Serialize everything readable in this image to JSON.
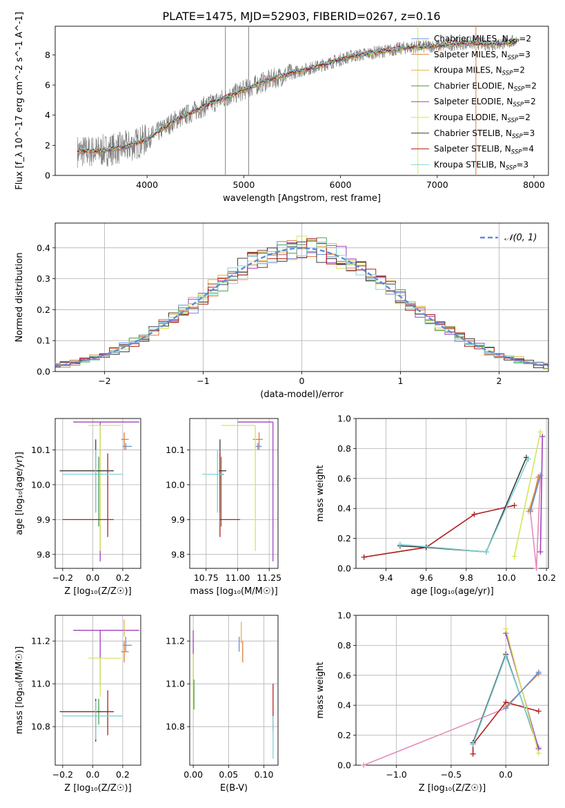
{
  "figure": {
    "title": "PLATE=1475, MJD=52903, FIBERID=0267, z=0.16"
  },
  "models": [
    {
      "name": "Chabrier MILES",
      "nssp": "2",
      "color": "#6b8fd6"
    },
    {
      "name": "Salpeter MILES",
      "nssp": "3",
      "color": "#e07b39"
    },
    {
      "name": "Kroupa MILES",
      "nssp": "2",
      "color": "#e3b34a"
    },
    {
      "name": "Chabrier ELODIE",
      "nssp": "2",
      "color": "#4e9a4e"
    },
    {
      "name": "Salpeter ELODIE",
      "nssp": "2",
      "color": "#a23fbf"
    },
    {
      "name": "Kroupa ELODIE",
      "nssp": "2",
      "color": "#d2e65a"
    },
    {
      "name": "Chabrier STELIB",
      "nssp": "3",
      "color": "#3b3b3b"
    },
    {
      "name": "Salpeter STELIB",
      "nssp": "4",
      "color": "#b01c1c"
    },
    {
      "name": "Kroupa STELIB",
      "nssp": "3",
      "color": "#7fd3d8"
    }
  ],
  "chart_data": [
    {
      "type": "line",
      "panel": "spectrum",
      "xlabel": "wavelength [Angstrom, rest frame]",
      "ylabel": "Flux [f_λ 10^-17 erg cm^-2 s^-1 A^-1]",
      "xlim": [
        3050,
        8150
      ],
      "ylim": [
        0,
        9.9
      ],
      "xticks": [
        4000,
        5000,
        6000,
        7000,
        8000
      ],
      "yticks": [
        0,
        2,
        4,
        6,
        8
      ],
      "data_color": "#808080",
      "continuum_knots_x": [
        3280,
        3500,
        3800,
        4000,
        4300,
        4600,
        4900,
        5200,
        5500,
        5800,
        6100,
        6400,
        6700,
        7000,
        7300,
        7600,
        7800,
        8000
      ],
      "continuum_knots_y": [
        1.6,
        1.6,
        1.9,
        2.4,
        3.7,
        4.6,
        5.4,
        6.2,
        6.8,
        7.3,
        7.9,
        8.2,
        8.5,
        8.6,
        8.8,
        8.7,
        8.9,
        9.1
      ],
      "legend": "top-right"
    },
    {
      "type": "line",
      "panel": "residuals",
      "xlabel": "(data-model)/error",
      "ylabel": "Normed distribution",
      "xlim": [
        -2.5,
        2.5
      ],
      "ylim": [
        0,
        0.48
      ],
      "xticks": [
        -2,
        -1,
        0,
        1,
        2
      ],
      "yticks": [
        0.0,
        0.1,
        0.2,
        0.3,
        0.4
      ],
      "gaussian_label": "𝒩(0, 1)",
      "gaussian_color": "#5b8bd9",
      "bin_width": 0.1,
      "grid": true,
      "legend": "top-right"
    },
    {
      "type": "scatter",
      "panel": "age-vs-Z",
      "xlabel": "Z [log₁₀(Z/Z☉)]",
      "ylabel": "age  [log₁₀(age/yr)]",
      "xlim": [
        -0.25,
        0.32
      ],
      "ylim": [
        9.76,
        10.19
      ],
      "xticks": [
        -0.2,
        0.0,
        0.2
      ],
      "yticks": [
        9.8,
        9.9,
        10.0,
        10.1
      ],
      "errorbars": [
        {
          "model": 0,
          "x": 0.22,
          "y": 10.11,
          "xerr": [
            0.02,
            0.04
          ],
          "yerr": [
            0.01,
            0.01
          ]
        },
        {
          "model": 1,
          "x": 0.21,
          "y": 10.13,
          "xerr": [
            0.02,
            0.03
          ],
          "yerr": [
            0.03,
            0.02
          ]
        },
        {
          "model": 3,
          "x": 0.04,
          "y": 10.03,
          "xerr": [
            0.03,
            0.02
          ],
          "yerr": [
            0.15,
            0.05
          ]
        },
        {
          "model": 4,
          "x": 0.05,
          "y": 10.18,
          "xerr": [
            0.18,
            0.26
          ],
          "yerr": [
            0.4,
            0.0
          ]
        },
        {
          "model": 5,
          "x": 0.05,
          "y": 10.17,
          "xerr": [
            0.08,
            0.14
          ],
          "yerr": [
            0.36,
            0.0
          ]
        },
        {
          "model": 6,
          "x": 0.02,
          "y": 10.04,
          "xerr": [
            0.24,
            0.12
          ],
          "yerr": [
            0.12,
            0.09
          ]
        },
        {
          "model": 7,
          "x": 0.1,
          "y": 9.9,
          "xerr": [
            0.3,
            0.04
          ],
          "yerr": [
            0.05,
            0.19
          ]
        },
        {
          "model": 8,
          "x": 0.02,
          "y": 10.03,
          "xerr": [
            0.22,
            0.18
          ],
          "yerr": [
            0.11,
            0.07
          ]
        }
      ]
    },
    {
      "type": "scatter",
      "panel": "age-vs-mass",
      "xlabel": "mass [log₁₀(M/M☉)]",
      "ylabel": "",
      "xlim": [
        10.62,
        11.32
      ],
      "ylim": [
        9.76,
        10.19
      ],
      "xticks": [
        10.75,
        11.0,
        11.25
      ],
      "yticks": [
        9.8,
        9.9,
        10.0,
        10.1
      ],
      "errorbars": [
        {
          "model": 0,
          "x": 11.16,
          "y": 10.11,
          "xerr": [
            0.02,
            0.03
          ],
          "yerr": [
            0.01,
            0.01
          ]
        },
        {
          "model": 1,
          "x": 11.17,
          "y": 10.13,
          "xerr": [
            0.05,
            0.03
          ],
          "yerr": [
            0.03,
            0.02
          ]
        },
        {
          "model": 3,
          "x": 10.87,
          "y": 10.03,
          "xerr": [
            0.02,
            0.02
          ],
          "yerr": [
            0.15,
            0.05
          ]
        },
        {
          "model": 4,
          "x": 11.28,
          "y": 10.18,
          "xerr": [
            0.28,
            0.0
          ],
          "yerr": [
            0.4,
            0.0
          ]
        },
        {
          "model": 5,
          "x": 11.14,
          "y": 10.17,
          "xerr": [
            0.27,
            0.0
          ],
          "yerr": [
            0.36,
            0.0
          ]
        },
        {
          "model": 6,
          "x": 10.86,
          "y": 10.04,
          "xerr": [
            0.01,
            0.05
          ],
          "yerr": [
            0.12,
            0.09
          ]
        },
        {
          "model": 7,
          "x": 10.86,
          "y": 9.9,
          "xerr": [
            0.0,
            0.16
          ],
          "yerr": [
            0.05,
            0.19
          ]
        },
        {
          "model": 8,
          "x": 10.84,
          "y": 10.03,
          "xerr": [
            0.12,
            0.04
          ],
          "yerr": [
            0.11,
            0.07
          ]
        }
      ]
    },
    {
      "type": "line",
      "panel": "weight-vs-age",
      "xlabel": "age  [log₁₀(age/yr)]",
      "ylabel": "mass weight",
      "xlim": [
        9.25,
        10.21
      ],
      "ylim": [
        0,
        1
      ],
      "xticks": [
        9.4,
        9.6,
        9.8,
        10.0,
        10.2
      ],
      "yticks": [
        0.0,
        0.2,
        0.4,
        0.6,
        0.8,
        1.0
      ],
      "grid": true,
      "series": [
        {
          "model": 7,
          "x": [
            9.29,
            9.6,
            9.84,
            10.04
          ],
          "y": [
            0.075,
            0.14,
            0.36,
            0.42
          ]
        },
        {
          "model": 6,
          "x": [
            9.47,
            9.6,
            9.9,
            10.1
          ],
          "y": [
            0.15,
            0.14,
            0.11,
            0.74
          ]
        },
        {
          "model": 8,
          "x": [
            9.47,
            9.9,
            10.11
          ],
          "y": [
            0.16,
            0.11,
            0.73
          ]
        },
        {
          "model": 4,
          "x": [
            10.17,
            10.18
          ],
          "y": [
            0.11,
            0.88
          ]
        },
        {
          "model": 5,
          "x": [
            10.04,
            10.17
          ],
          "y": [
            0.08,
            0.91
          ]
        },
        {
          "model": 2,
          "x": [
            10.11,
            10.17
          ],
          "y": [
            0.38,
            0.62
          ]
        },
        {
          "model": 1,
          "x": [
            10.12,
            10.16
          ],
          "y": [
            0.39,
            0.61
          ]
        },
        {
          "model": 0,
          "x": [
            10.12,
            10.17
          ],
          "y": [
            0.38,
            0.62
          ]
        }
      ],
      "pink_series": {
        "color": "#e58ab8",
        "x": [
          10.12,
          10.15,
          10.17
        ],
        "y": [
          0.38,
          0.0,
          0.62
        ]
      }
    },
    {
      "type": "scatter",
      "panel": "mass-vs-Z",
      "xlabel": "Z [log₁₀(Z/Z☉)]",
      "ylabel": "mass [log₁₀(M/M☉)]",
      "xlim": [
        -0.25,
        0.32
      ],
      "ylim": [
        10.62,
        11.32
      ],
      "xticks": [
        -0.2,
        0.0,
        0.2
      ],
      "yticks": [
        10.8,
        11.0,
        11.2
      ],
      "errorbars": [
        {
          "model": 0,
          "x": 0.22,
          "y": 11.18,
          "xerr": [
            0.02,
            0.04
          ],
          "yerr": [
            0.03,
            0.04
          ]
        },
        {
          "model": 1,
          "x": 0.21,
          "y": 11.15,
          "xerr": [
            0.02,
            0.03
          ],
          "yerr": [
            0.05,
            0.05
          ]
        },
        {
          "model": 3,
          "x": 0.04,
          "y": 10.87,
          "xerr": [
            0.03,
            0.02
          ],
          "yerr": [
            0.06,
            0.06
          ]
        },
        {
          "model": 4,
          "x": 0.05,
          "y": 11.25,
          "xerr": [
            0.18,
            0.26
          ],
          "yerr": [
            0.26,
            0.0
          ]
        },
        {
          "model": 5,
          "x": 0.05,
          "y": 11.12,
          "xerr": [
            0.08,
            0.14
          ],
          "yerr": [
            0.18,
            0.0
          ]
        },
        {
          "model": 6,
          "x": 0.02,
          "y": 10.87,
          "xerr": [
            0.24,
            0.12
          ],
          "yerr": [
            0.14,
            0.06
          ]
        },
        {
          "model": 7,
          "x": 0.1,
          "y": 10.87,
          "xerr": [
            0.3,
            0.04
          ],
          "yerr": [
            0.11,
            0.1
          ]
        },
        {
          "model": 8,
          "x": 0.02,
          "y": 10.85,
          "xerr": [
            0.22,
            0.18
          ],
          "yerr": [
            0.11,
            0.07
          ]
        },
        {
          "model": 2,
          "x": 0.21,
          "y": 11.26,
          "xerr": [
            0.0,
            0.0
          ],
          "yerr": [
            0.04,
            0.04
          ]
        }
      ]
    },
    {
      "type": "scatter",
      "panel": "mass-vs-EBV",
      "xlabel": "E(B-V)",
      "ylabel": "",
      "xlim": [
        -0.005,
        0.12
      ],
      "ylim": [
        10.62,
        11.32
      ],
      "xticks": [
        0.0,
        0.05,
        0.1
      ],
      "yticks": [
        10.8,
        11.0,
        11.2
      ],
      "errorbars": [
        {
          "model": 0,
          "x": 0.065,
          "y": 11.18,
          "xerr": [
            0,
            0
          ],
          "yerr": [
            0.03,
            0.04
          ]
        },
        {
          "model": 1,
          "x": 0.07,
          "y": 11.15,
          "xerr": [
            0,
            0
          ],
          "yerr": [
            0.05,
            0.05
          ]
        },
        {
          "model": 4,
          "x": 0.0,
          "y": 11.12,
          "xerr": [
            0,
            0
          ],
          "yerr": [
            0.15,
            0.13
          ]
        },
        {
          "model": 5,
          "x": 0.0,
          "y": 11.0,
          "xerr": [
            0,
            0
          ],
          "yerr": [
            0.13,
            0.14
          ]
        },
        {
          "model": 3,
          "x": 0.001,
          "y": 10.96,
          "xerr": [
            0,
            0
          ],
          "yerr": [
            0.08,
            0.06
          ]
        },
        {
          "model": 7,
          "x": 0.113,
          "y": 10.9,
          "xerr": [
            0,
            0
          ],
          "yerr": [
            0.12,
            0.1
          ]
        },
        {
          "model": 8,
          "x": 0.113,
          "y": 10.75,
          "xerr": [
            0,
            0
          ],
          "yerr": [
            0.1,
            0.1
          ]
        },
        {
          "model": 2,
          "x": 0.068,
          "y": 11.24,
          "xerr": [
            0,
            0
          ],
          "yerr": [
            0.05,
            0.05
          ]
        }
      ]
    },
    {
      "type": "line",
      "panel": "weight-vs-Z",
      "xlabel": "Z [log₁₀(Z/Z☉)]",
      "ylabel": "mass weight",
      "xlim": [
        -1.37,
        0.39
      ],
      "ylim": [
        0,
        1
      ],
      "xticks": [
        -1.0,
        -0.5,
        0.0
      ],
      "yticks": [
        0.0,
        0.2,
        0.4,
        0.6,
        0.8,
        1.0
      ],
      "grid": true,
      "series": [
        {
          "model": 7,
          "x": [
            -0.3,
            -0.3,
            0.0,
            0.3
          ],
          "y": [
            0.075,
            0.14,
            0.42,
            0.36
          ]
        },
        {
          "model": 6,
          "x": [
            -0.3,
            0.0,
            0.3
          ],
          "y": [
            0.15,
            0.74,
            0.11
          ]
        },
        {
          "model": 8,
          "x": [
            -0.3,
            0.0,
            0.3
          ],
          "y": [
            0.14,
            0.73,
            0.12
          ]
        },
        {
          "model": 4,
          "x": [
            0.0,
            0.3
          ],
          "y": [
            0.88,
            0.11
          ]
        },
        {
          "model": 5,
          "x": [
            0.0,
            0.3
          ],
          "y": [
            0.91,
            0.08
          ]
        },
        {
          "model": 1,
          "x": [
            0.0,
            0.3
          ],
          "y": [
            0.39,
            0.61
          ]
        },
        {
          "model": 2,
          "x": [
            0.0,
            0.3
          ],
          "y": [
            0.38,
            0.62
          ]
        },
        {
          "model": 0,
          "x": [
            0.0,
            0.3
          ],
          "y": [
            0.38,
            0.62
          ]
        }
      ],
      "pink_series": {
        "color": "#e58ab8",
        "x": [
          -1.3,
          0.0,
          0.3
        ],
        "y": [
          0.0,
          0.38,
          0.62
        ]
      }
    }
  ]
}
